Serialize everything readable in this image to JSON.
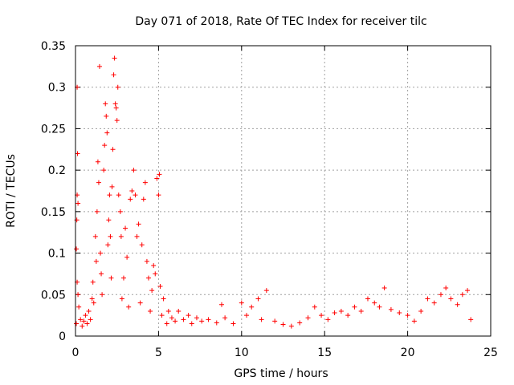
{
  "chart_data": {
    "type": "scatter",
    "title": "Day 071 of 2018, Rate Of TEC Index for receiver tilc",
    "xlabel": "GPS time / hours",
    "ylabel": "ROTI / TECUs",
    "xlim": [
      0,
      25
    ],
    "ylim": [
      0,
      0.35
    ],
    "xticks": [
      0,
      5,
      10,
      15,
      20,
      25
    ],
    "xtick_labels": [
      "0",
      "5",
      "10",
      "15",
      "20",
      "25"
    ],
    "yticks": [
      0,
      0.05,
      0.1,
      0.15,
      0.2,
      0.25,
      0.3,
      0.35
    ],
    "ytick_labels": [
      "0",
      "0.05",
      "0.1",
      "0.15",
      "0.2",
      "0.25",
      "0.3",
      "0.35"
    ],
    "grid": true,
    "marker": "plus",
    "color": "#ff0000",
    "series": [
      {
        "name": "ROTI",
        "points": [
          [
            0.05,
            0.015
          ],
          [
            0.1,
            0.3
          ],
          [
            0.12,
            0.22
          ],
          [
            0.1,
            0.17
          ],
          [
            0.15,
            0.16
          ],
          [
            0.08,
            0.14
          ],
          [
            0.05,
            0.105
          ],
          [
            0.1,
            0.065
          ],
          [
            0.15,
            0.05
          ],
          [
            0.2,
            0.035
          ],
          [
            0.3,
            0.02
          ],
          [
            0.4,
            0.012
          ],
          [
            0.5,
            0.018
          ],
          [
            0.6,
            0.025
          ],
          [
            0.7,
            0.015
          ],
          [
            0.8,
            0.03
          ],
          [
            0.9,
            0.02
          ],
          [
            1.0,
            0.045
          ],
          [
            1.05,
            0.065
          ],
          [
            1.1,
            0.04
          ],
          [
            1.2,
            0.12
          ],
          [
            1.25,
            0.09
          ],
          [
            1.3,
            0.15
          ],
          [
            1.35,
            0.21
          ],
          [
            1.4,
            0.185
          ],
          [
            1.45,
            0.325
          ],
          [
            1.5,
            0.1
          ],
          [
            1.55,
            0.075
          ],
          [
            1.6,
            0.05
          ],
          [
            1.7,
            0.2
          ],
          [
            1.75,
            0.23
          ],
          [
            1.8,
            0.28
          ],
          [
            1.85,
            0.265
          ],
          [
            1.9,
            0.245
          ],
          [
            1.95,
            0.11
          ],
          [
            2.0,
            0.14
          ],
          [
            2.05,
            0.17
          ],
          [
            2.1,
            0.12
          ],
          [
            2.15,
            0.07
          ],
          [
            2.2,
            0.18
          ],
          [
            2.25,
            0.225
          ],
          [
            2.3,
            0.315
          ],
          [
            2.35,
            0.335
          ],
          [
            2.4,
            0.28
          ],
          [
            2.45,
            0.275
          ],
          [
            2.5,
            0.26
          ],
          [
            2.55,
            0.3
          ],
          [
            2.6,
            0.17
          ],
          [
            2.7,
            0.15
          ],
          [
            2.75,
            0.12
          ],
          [
            2.8,
            0.045
          ],
          [
            2.9,
            0.07
          ],
          [
            3.0,
            0.13
          ],
          [
            3.1,
            0.095
          ],
          [
            3.2,
            0.035
          ],
          [
            3.3,
            0.165
          ],
          [
            3.4,
            0.175
          ],
          [
            3.5,
            0.2
          ],
          [
            3.6,
            0.17
          ],
          [
            3.7,
            0.12
          ],
          [
            3.8,
            0.135
          ],
          [
            3.9,
            0.04
          ],
          [
            4.0,
            0.11
          ],
          [
            4.1,
            0.165
          ],
          [
            4.2,
            0.185
          ],
          [
            4.3,
            0.09
          ],
          [
            4.4,
            0.07
          ],
          [
            4.5,
            0.03
          ],
          [
            4.6,
            0.055
          ],
          [
            4.7,
            0.085
          ],
          [
            4.8,
            0.075
          ],
          [
            4.9,
            0.19
          ],
          [
            5.0,
            0.17
          ],
          [
            5.05,
            0.195
          ],
          [
            5.1,
            0.06
          ],
          [
            5.2,
            0.025
          ],
          [
            5.3,
            0.045
          ],
          [
            5.5,
            0.015
          ],
          [
            5.6,
            0.03
          ],
          [
            5.8,
            0.022
          ],
          [
            6.0,
            0.018
          ],
          [
            6.2,
            0.03
          ],
          [
            6.5,
            0.02
          ],
          [
            6.8,
            0.025
          ],
          [
            7.0,
            0.015
          ],
          [
            7.3,
            0.022
          ],
          [
            7.6,
            0.018
          ],
          [
            8.0,
            0.02
          ],
          [
            8.5,
            0.016
          ],
          [
            8.8,
            0.038
          ],
          [
            9.0,
            0.022
          ],
          [
            9.5,
            0.015
          ],
          [
            10.0,
            0.04
          ],
          [
            10.3,
            0.025
          ],
          [
            10.6,
            0.035
          ],
          [
            11.0,
            0.045
          ],
          [
            11.2,
            0.02
          ],
          [
            11.5,
            0.055
          ],
          [
            12.0,
            0.018
          ],
          [
            12.5,
            0.014
          ],
          [
            13.0,
            0.012
          ],
          [
            13.5,
            0.016
          ],
          [
            14.0,
            0.022
          ],
          [
            14.4,
            0.035
          ],
          [
            14.8,
            0.025
          ],
          [
            15.2,
            0.02
          ],
          [
            15.6,
            0.028
          ],
          [
            16.0,
            0.03
          ],
          [
            16.4,
            0.025
          ],
          [
            16.8,
            0.035
          ],
          [
            17.2,
            0.03
          ],
          [
            17.6,
            0.045
          ],
          [
            18.0,
            0.04
          ],
          [
            18.3,
            0.035
          ],
          [
            18.6,
            0.058
          ],
          [
            19.0,
            0.032
          ],
          [
            19.5,
            0.028
          ],
          [
            20.0,
            0.025
          ],
          [
            20.4,
            0.018
          ],
          [
            20.8,
            0.03
          ],
          [
            21.2,
            0.045
          ],
          [
            21.6,
            0.04
          ],
          [
            22.0,
            0.05
          ],
          [
            22.3,
            0.058
          ],
          [
            22.6,
            0.045
          ],
          [
            23.0,
            0.038
          ],
          [
            23.3,
            0.05
          ],
          [
            23.6,
            0.055
          ],
          [
            23.8,
            0.02
          ]
        ]
      }
    ]
  }
}
